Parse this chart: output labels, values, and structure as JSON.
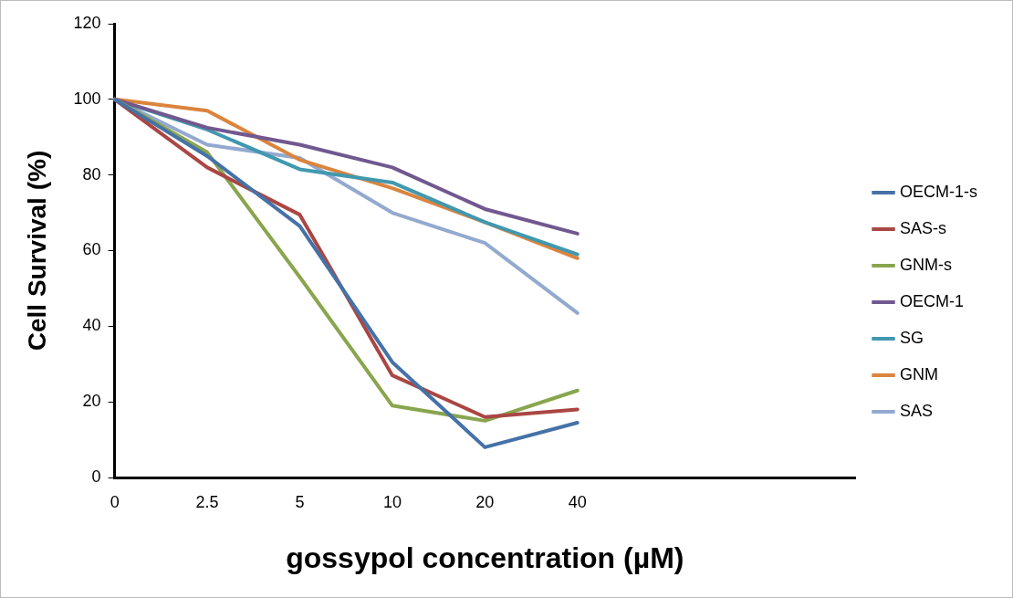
{
  "chart_data": {
    "type": "line",
    "xlabel": "gossypol concentration (µM)",
    "ylabel": "Cell Survival (%)",
    "categories": [
      "0",
      "2.5",
      "5",
      "10",
      "20",
      "40",
      null,
      null,
      null
    ],
    "ylim": [
      0,
      120
    ],
    "yticks": [
      0,
      20,
      40,
      60,
      80,
      100,
      120
    ],
    "grid": false,
    "legend": "right",
    "marker": "none",
    "line_style": "solid",
    "series": [
      {
        "name": "OECM-1-s",
        "color": "#4572a7",
        "values": [
          100,
          85,
          66.5,
          30.5,
          8,
          14.5,
          null,
          null,
          null
        ]
      },
      {
        "name": "SAS-s",
        "color": "#aa4643",
        "values": [
          100,
          82,
          69.5,
          27,
          16,
          18,
          null,
          null,
          null
        ]
      },
      {
        "name": "GNM-s",
        "color": "#89a54e",
        "values": [
          100,
          86,
          53,
          19,
          15,
          23,
          null,
          null,
          null
        ]
      },
      {
        "name": "OECM-1",
        "color": "#71588f",
        "values": [
          100,
          92.5,
          88,
          82,
          71,
          64.5,
          null,
          null,
          null
        ]
      },
      {
        "name": "SG",
        "color": "#4198af",
        "values": [
          100,
          92,
          81.5,
          78,
          67.5,
          59,
          null,
          null,
          null
        ]
      },
      {
        "name": "GNM",
        "color": "#db843d",
        "values": [
          100,
          97,
          84,
          76.5,
          67.5,
          58,
          null,
          null,
          null
        ]
      },
      {
        "name": "SAS",
        "color": "#93a9cf",
        "values": [
          100,
          88,
          84.5,
          70,
          62,
          43.5,
          null,
          null,
          null
        ]
      }
    ]
  }
}
